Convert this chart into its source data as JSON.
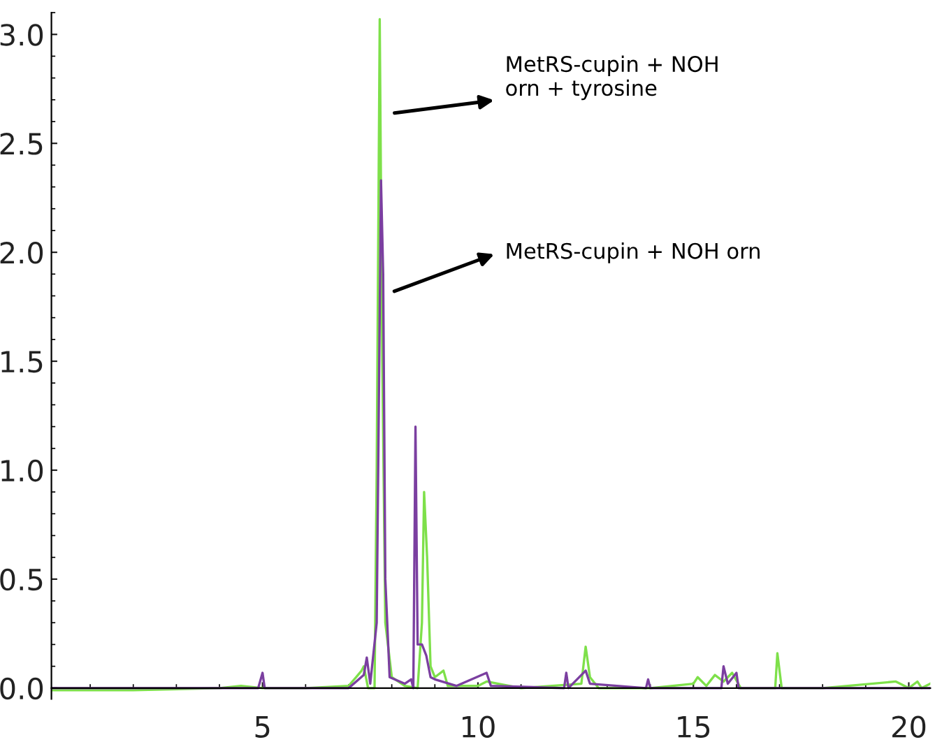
{
  "chart_data": {
    "type": "line",
    "xlim": [
      0.1,
      20.5
    ],
    "xticks": [
      5,
      10,
      15,
      20
    ],
    "ylim": [
      -0.05,
      3.1
    ],
    "yticks": [
      {
        "value": 0,
        "label": "0.0"
      },
      {
        "value": 0.5,
        "label": "0.5"
      },
      {
        "value": 1,
        "label": "1.0"
      },
      {
        "value": 1.5,
        "label": "1.5"
      },
      {
        "value": 2,
        "label": "2.0"
      },
      {
        "value": 2.5,
        "label": "2.5"
      },
      {
        "value": 3,
        "label": "3.0"
      }
    ],
    "grid": false,
    "legend": false,
    "marker": "none",
    "line_style": "solid",
    "series": [
      {
        "color": "#7ee04a",
        "x": [
          0.1,
          2.0,
          4.0,
          4.5,
          5.0,
          6.0,
          7.0,
          7.3,
          7.35,
          7.45,
          7.6,
          7.65,
          7.72,
          7.78,
          7.85,
          8.0,
          8.3,
          8.6,
          8.7,
          8.75,
          8.82,
          8.9,
          9.0,
          9.2,
          9.3,
          10.0,
          10.2,
          11.0,
          12.4,
          12.5,
          12.6,
          12.8,
          14.0,
          15.0,
          15.1,
          15.3,
          15.5,
          15.7,
          15.9,
          16.1,
          16.9,
          16.95,
          17.05,
          18.0,
          19.7,
          20.0,
          20.2,
          20.3,
          20.5
        ],
        "values": [
          -0.01,
          -0.01,
          0.0,
          0.01,
          0.0,
          0.0,
          0.01,
          0.08,
          0.1,
          0.0,
          0.0,
          1.0,
          3.07,
          1.5,
          0.3,
          0.05,
          0.01,
          0.0,
          0.3,
          0.9,
          0.6,
          0.1,
          0.05,
          0.08,
          0.01,
          0.01,
          0.03,
          0.0,
          0.02,
          0.19,
          0.05,
          0.0,
          0.0,
          0.02,
          0.05,
          0.01,
          0.06,
          0.03,
          0.07,
          0.0,
          0.0,
          0.16,
          0.0,
          0.0,
          0.03,
          0.0,
          0.03,
          0.0,
          0.02
        ]
      },
      {
        "color": "#7b3fa0",
        "x": [
          0.1,
          2.0,
          4.9,
          5.0,
          5.05,
          7.0,
          7.35,
          7.42,
          7.5,
          7.65,
          7.75,
          7.8,
          7.85,
          7.95,
          8.3,
          8.45,
          8.5,
          8.55,
          8.6,
          8.7,
          8.8,
          8.9,
          9.0,
          9.5,
          10.2,
          10.3,
          12.0,
          12.05,
          12.1,
          12.5,
          12.6,
          13.9,
          13.95,
          14.0,
          15.65,
          15.7,
          15.8,
          16.0,
          16.05,
          17.0,
          20.5
        ],
        "values": [
          0.0,
          0.0,
          0.0,
          0.07,
          0.0,
          0.0,
          0.06,
          0.14,
          0.02,
          0.3,
          2.33,
          1.9,
          0.5,
          0.05,
          0.02,
          0.04,
          0.0,
          1.2,
          0.2,
          0.2,
          0.15,
          0.05,
          0.04,
          0.01,
          0.07,
          0.01,
          0.0,
          0.07,
          0.0,
          0.08,
          0.02,
          0.0,
          0.04,
          0.0,
          0.0,
          0.1,
          0.02,
          0.07,
          0.0,
          0.0,
          0.0
        ]
      }
    ],
    "annotations": [
      "MetRS-cupin + NOH\norn + tyrosine",
      "MetRS-cupin + NOH orn"
    ]
  }
}
